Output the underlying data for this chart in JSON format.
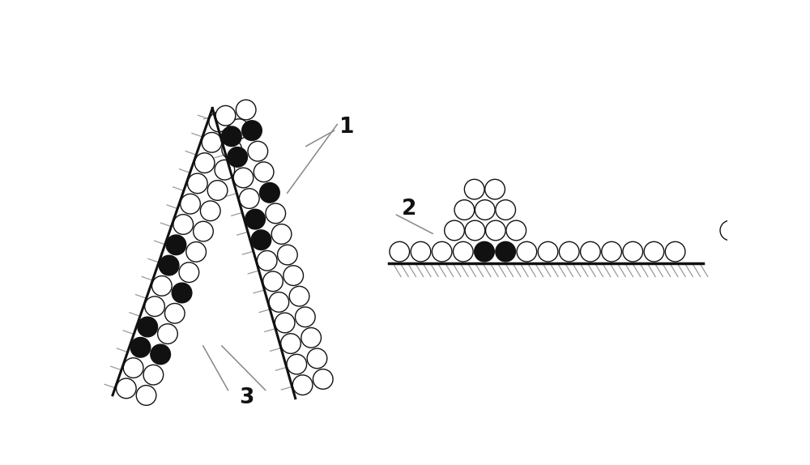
{
  "bg_color": "#ffffff",
  "line_color": "#111111",
  "circle_facecolor": "#ffffff",
  "circle_edgecolor": "#111111",
  "dark_circle_color": "#111111",
  "hatch_color": "#999999",
  "label_1": "1",
  "label_2": "2",
  "label_3": "3",
  "label_fontsize": 19,
  "label_fontweight": "bold",
  "fig_width": 10.0,
  "fig_height": 5.74,
  "dpi": 100
}
